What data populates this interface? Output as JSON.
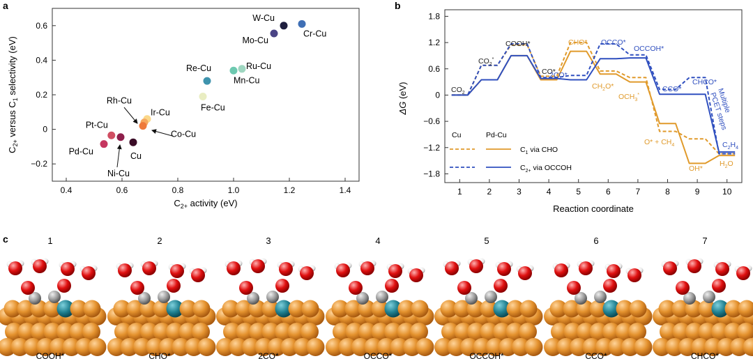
{
  "panels": {
    "a": {
      "letter": "a"
    },
    "b": {
      "letter": "b"
    },
    "c": {
      "letter": "c"
    }
  },
  "chart_data": [
    {
      "panel": "a",
      "type": "scatter",
      "xlabel": "C2+ activity (eV)",
      "ylabel": "C2+ versus C1 selectivity (eV)",
      "xlim": [
        0.35,
        1.45
      ],
      "ylim": [
        -0.3,
        0.7
      ],
      "xticks": [
        "0.4",
        "0.6",
        "0.8",
        "1.0",
        "1.2",
        "1.4"
      ],
      "yticks": [
        "−0.2",
        "0",
        "0.2",
        "0.4",
        "0.6"
      ],
      "points": [
        {
          "label": "W-Cu",
          "x": 1.18,
          "y": 0.6,
          "color": "#1f1f3f"
        },
        {
          "label": "Cr-Cu",
          "x": 1.245,
          "y": 0.61,
          "color": "#3f6fb5"
        },
        {
          "label": "Mo-Cu",
          "x": 1.145,
          "y": 0.555,
          "color": "#4a4485"
        },
        {
          "label": "Ru-Cu",
          "x": 1.03,
          "y": 0.35,
          "color": "#9ed6c0"
        },
        {
          "label": "Mn-Cu",
          "x": 1.0,
          "y": 0.34,
          "color": "#6dc9b0"
        },
        {
          "label": "Re-Cu",
          "x": 0.905,
          "y": 0.28,
          "color": "#3e93ad"
        },
        {
          "label": "Fe-Cu",
          "x": 0.89,
          "y": 0.19,
          "color": "#e9edc2"
        },
        {
          "label": "Ir-Cu",
          "x": 0.69,
          "y": 0.06,
          "color": "#fbd88a"
        },
        {
          "label": "Rh-Cu",
          "x": 0.68,
          "y": 0.04,
          "color": "#f6a85e"
        },
        {
          "label": "Co-Cu",
          "x": 0.675,
          "y": 0.02,
          "color": "#ee7a3b"
        },
        {
          "label": "Pt-Cu",
          "x": 0.562,
          "y": -0.035,
          "color": "#d04e62"
        },
        {
          "label": "Pd-Cu",
          "x": 0.535,
          "y": -0.085,
          "color": "#c5365f"
        },
        {
          "label": "Ni-Cu",
          "x": 0.595,
          "y": -0.045,
          "color": "#8e1f4b"
        },
        {
          "label": "Cu",
          "x": 0.64,
          "y": -0.075,
          "color": "#3a0c26"
        }
      ]
    },
    {
      "panel": "b",
      "type": "line",
      "ylabel": "ΔG (eV)",
      "xlabel": "Reaction coordinate",
      "xlim": [
        0.5,
        10.5
      ],
      "ylim": [
        -2.0,
        1.95
      ],
      "xticks": [
        "1",
        "2",
        "3",
        "4",
        "5",
        "6",
        "7",
        "8",
        "9",
        "10"
      ],
      "yticks": [
        "1.8",
        "1.2",
        "0.6",
        "0",
        "−0.6",
        "−1.2",
        "−1.8"
      ],
      "legend": {
        "col_cu": "Cu",
        "col_pdcu": "Pd-Cu",
        "entry1": "C1 via CHO",
        "entry2": "C2+ via OCCOH"
      },
      "series": [
        {
          "name": "C1 via CHO (Cu)",
          "color": "#e09a2b",
          "dash": true,
          "levels": [
            0,
            0.68,
            1.15,
            0.43,
            1.2,
            0.55,
            0.4,
            -0.83,
            -1.0,
            -1.34
          ]
        },
        {
          "name": "C1 via CHO (Pd-Cu)",
          "color": "#e09a2b",
          "dash": false,
          "levels": [
            0,
            0.35,
            0.9,
            0.35,
            1.0,
            0.48,
            0.3,
            -0.65,
            -1.56,
            -1.38
          ]
        },
        {
          "name": "C2+ via OCCOH (Cu)",
          "color": "#2f4fbf",
          "dash": true,
          "levels": [
            0,
            0.68,
            1.17,
            0.4,
            0.45,
            1.17,
            0.92,
            0.13,
            0.4,
            -1.34
          ]
        },
        {
          "name": "C2+ via OCCOH (Pd-Cu)",
          "color": "#2f4fbf",
          "dash": false,
          "levels": [
            0,
            0.35,
            0.9,
            0.38,
            0.35,
            0.83,
            0.85,
            0.02,
            0.02,
            -1.3
          ]
        }
      ],
      "annotations": {
        "co2": "CO2",
        "co2star": "CO2*",
        "cooh": "COOH*",
        "costar": "CO*",
        "twoco": "2CO*",
        "cho": "CHO*",
        "occo": "OCCO*",
        "occoh": "OCCOH*",
        "ch2o": "CH2O*",
        "och3": "OCH3*",
        "cco": "CCO*",
        "chco": "CHCO*",
        "multiple": "Multiple",
        "pcet": "PCET steps",
        "o_ch4": "O* + CH4",
        "oh": "OH*",
        "h2o": "H2O",
        "c2h4": "C2H4"
      }
    }
  ],
  "structures": {
    "numbers": [
      "1",
      "2",
      "3",
      "4",
      "5",
      "6",
      "7"
    ],
    "labels": [
      "COOH*",
      "CHO*",
      "2CO*",
      "OCCO*",
      "OCCOH*",
      "CCO*",
      "CHCO*"
    ],
    "colors": {
      "copper": "#e4922e",
      "dopant": "#1f7f8f",
      "carbon": "#9a9a9a",
      "oxygen": "#e01010",
      "hydrogen": "#f4f4f4"
    }
  }
}
